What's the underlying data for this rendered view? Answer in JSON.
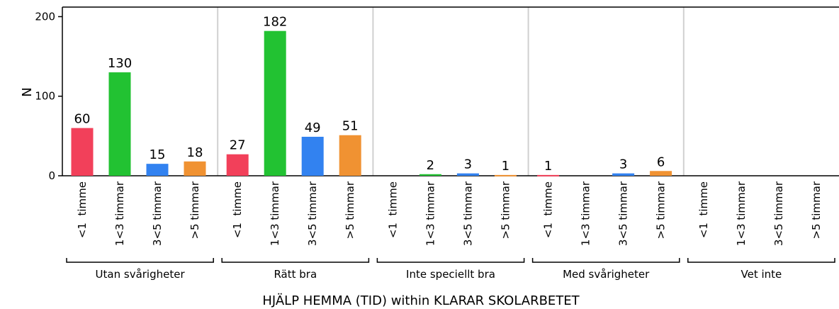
{
  "chart_data": {
    "type": "bar",
    "xlabel": "HJÄLP HEMMA (TID) within KLARAR SKOLARBETET",
    "ylabel": "N",
    "categories": [
      "Utan svårigheter",
      "Rätt bra",
      "Inte speciellt bra",
      "Med svårigheter",
      "Vet inte"
    ],
    "series": [
      {
        "name": "<1  timme",
        "color": "#f2405a",
        "values": [
          60,
          27,
          null,
          1,
          null
        ]
      },
      {
        "name": "1<3 timmar",
        "color": "#22c232",
        "values": [
          130,
          182,
          2,
          null,
          null
        ]
      },
      {
        "name": "3<5 timmar",
        "color": "#3282f0",
        "values": [
          15,
          49,
          3,
          3,
          null
        ]
      },
      {
        "name": ">5 timmar",
        "color": "#f09232",
        "values": [
          18,
          51,
          1,
          6,
          null
        ]
      }
    ],
    "ylim": [
      0,
      212
    ],
    "yticks": [
      0,
      100,
      200
    ]
  }
}
